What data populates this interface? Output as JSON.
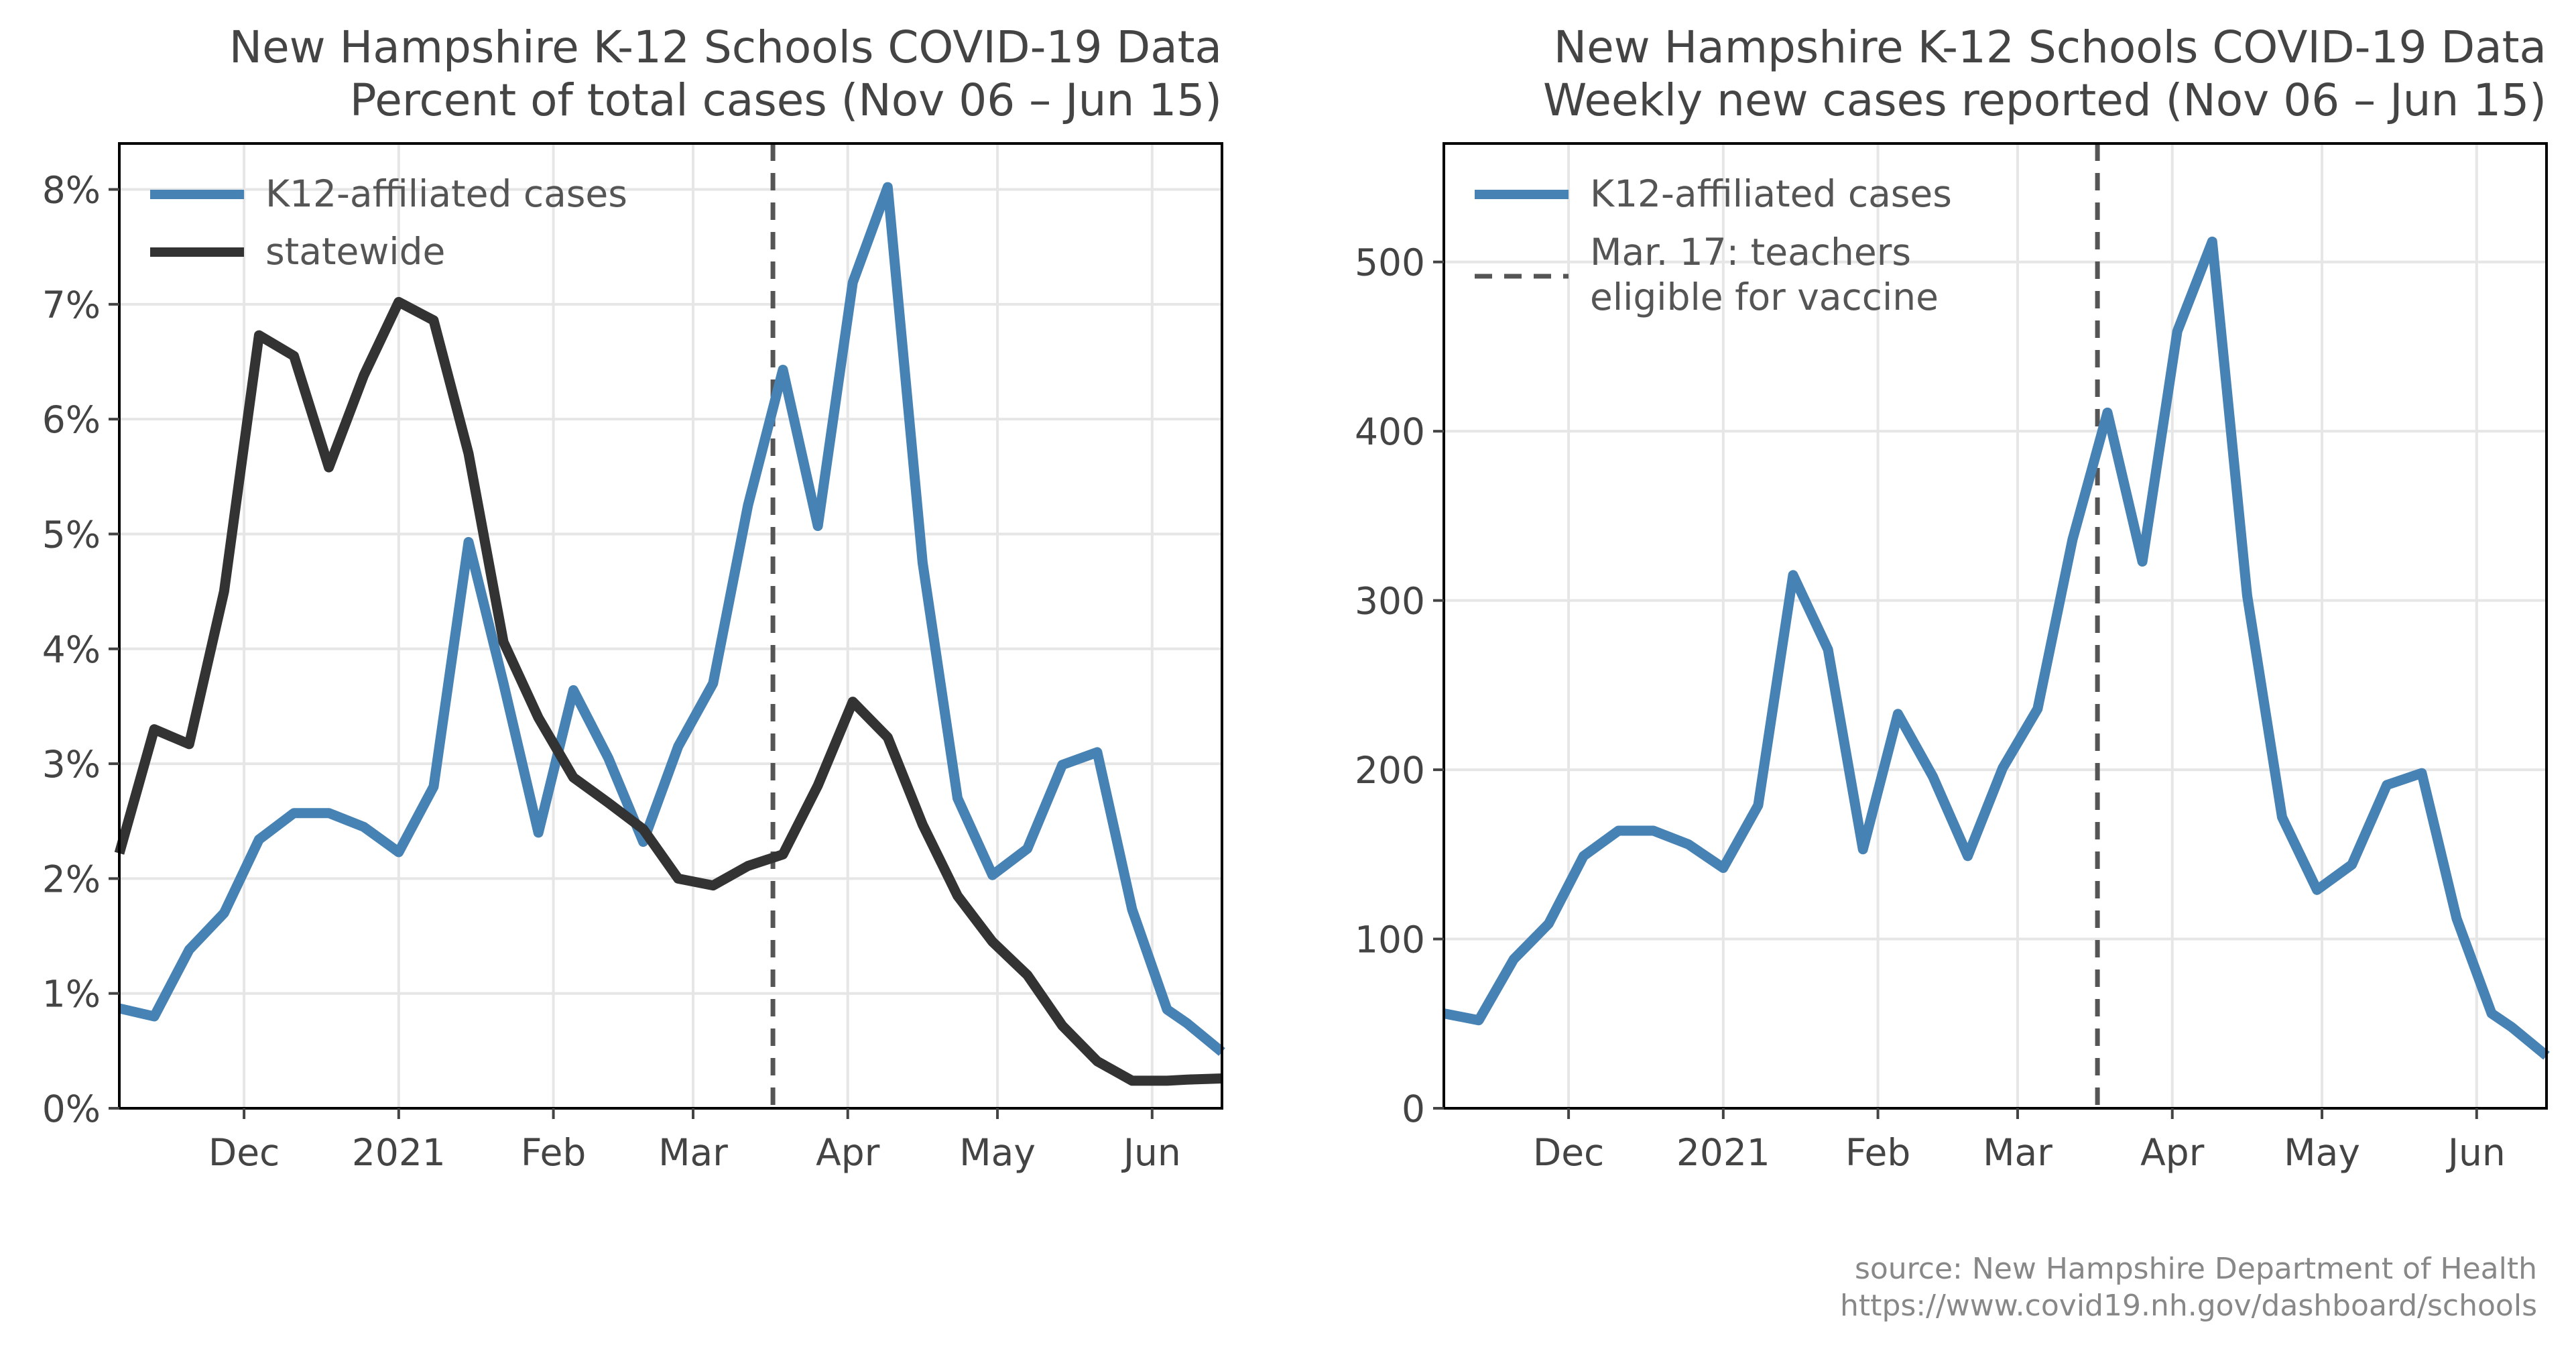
{
  "chart_data": [
    {
      "type": "line",
      "title": "New Hampshire K-12 Schools COVID-19 Data",
      "subtitle": "Percent of total cases (Nov 06 – Jun 15)",
      "x_range": [
        "2020-11-06",
        "2021-06-15"
      ],
      "ylim": [
        0,
        8.4
      ],
      "y_ticks": [
        0,
        1,
        2,
        3,
        4,
        5,
        6,
        7,
        8
      ],
      "y_tick_labels": [
        "0%",
        "1%",
        "2%",
        "3%",
        "4%",
        "5%",
        "6%",
        "7%",
        "8%"
      ],
      "x_ticks": [
        "2020-12-01",
        "2021-01-01",
        "2021-02-01",
        "2021-03-01",
        "2021-04-01",
        "2021-05-01",
        "2021-06-01"
      ],
      "x_tick_labels": [
        "Dec",
        "2021",
        "Feb",
        "Mar",
        "Apr",
        "May",
        "Jun"
      ],
      "grid": true,
      "legend_position": "upper-left",
      "vline": {
        "x": "2021-03-17"
      },
      "series": [
        {
          "name": "K12-affiliated cases",
          "color": "#4682b4",
          "x": [
            "2020-11-06",
            "2020-11-13",
            "2020-11-20",
            "2020-11-27",
            "2020-12-04",
            "2020-12-11",
            "2020-12-18",
            "2020-12-25",
            "2021-01-01",
            "2021-01-08",
            "2021-01-15",
            "2021-01-22",
            "2021-01-29",
            "2021-02-05",
            "2021-02-12",
            "2021-02-19",
            "2021-02-26",
            "2021-03-05",
            "2021-03-12",
            "2021-03-19",
            "2021-03-26",
            "2021-04-02",
            "2021-04-09",
            "2021-04-16",
            "2021-04-23",
            "2021-04-30",
            "2021-05-07",
            "2021-05-14",
            "2021-05-21",
            "2021-05-28",
            "2021-06-04",
            "2021-06-08",
            "2021-06-15"
          ],
          "values": [
            0.87,
            0.8,
            1.38,
            1.7,
            2.34,
            2.57,
            2.57,
            2.45,
            2.23,
            2.8,
            4.93,
            3.7,
            2.4,
            3.64,
            3.05,
            2.32,
            3.15,
            3.7,
            5.25,
            6.43,
            5.07,
            7.19,
            8.02,
            4.75,
            2.7,
            2.03,
            2.26,
            2.99,
            3.1,
            1.73,
            0.86,
            0.74,
            0.49
          ]
        },
        {
          "name": "statewide",
          "color": "#333333",
          "x": [
            "2020-11-06",
            "2020-11-13",
            "2020-11-20",
            "2020-11-27",
            "2020-12-04",
            "2020-12-11",
            "2020-12-18",
            "2020-12-25",
            "2021-01-01",
            "2021-01-08",
            "2021-01-15",
            "2021-01-22",
            "2021-01-29",
            "2021-02-05",
            "2021-02-12",
            "2021-02-19",
            "2021-02-26",
            "2021-03-05",
            "2021-03-12",
            "2021-03-19",
            "2021-03-26",
            "2021-04-02",
            "2021-04-09",
            "2021-04-16",
            "2021-04-23",
            "2021-04-30",
            "2021-05-07",
            "2021-05-14",
            "2021-05-21",
            "2021-05-28",
            "2021-06-04",
            "2021-06-08",
            "2021-06-15"
          ],
          "values": [
            2.22,
            3.3,
            3.17,
            4.5,
            6.73,
            6.55,
            5.58,
            6.38,
            7.02,
            6.86,
            5.7,
            4.06,
            3.4,
            2.88,
            2.66,
            2.43,
            2.0,
            1.94,
            2.11,
            2.21,
            2.81,
            3.54,
            3.23,
            2.47,
            1.85,
            1.45,
            1.16,
            0.72,
            0.41,
            0.24,
            0.24,
            0.25,
            0.26
          ]
        }
      ]
    },
    {
      "type": "line",
      "title": "New Hampshire K-12 Schools COVID-19 Data",
      "subtitle": "Weekly new cases reported (Nov 06 – Jun 15)",
      "x_range": [
        "2020-11-06",
        "2021-06-15"
      ],
      "ylim": [
        0,
        570
      ],
      "y_ticks": [
        0,
        100,
        200,
        300,
        400,
        500
      ],
      "y_tick_labels": [
        "0",
        "100",
        "200",
        "300",
        "400",
        "500"
      ],
      "x_ticks": [
        "2020-12-01",
        "2021-01-01",
        "2021-02-01",
        "2021-03-01",
        "2021-04-01",
        "2021-05-01",
        "2021-06-01"
      ],
      "x_tick_labels": [
        "Dec",
        "2021",
        "Feb",
        "Mar",
        "Apr",
        "May",
        "Jun"
      ],
      "grid": true,
      "legend_position": "upper-left",
      "vline": {
        "x": "2021-03-17",
        "label_line1": "Mar. 17: teachers",
        "label_line2": "eligible for vaccine",
        "color": "#555555"
      },
      "series": [
        {
          "name": "K12-affiliated cases",
          "color": "#4682b4",
          "x": [
            "2020-11-06",
            "2020-11-13",
            "2020-11-20",
            "2020-11-27",
            "2020-12-04",
            "2020-12-11",
            "2020-12-18",
            "2020-12-25",
            "2021-01-01",
            "2021-01-08",
            "2021-01-15",
            "2021-01-22",
            "2021-01-29",
            "2021-02-05",
            "2021-02-12",
            "2021-02-19",
            "2021-02-26",
            "2021-03-05",
            "2021-03-12",
            "2021-03-19",
            "2021-03-26",
            "2021-04-02",
            "2021-04-09",
            "2021-04-16",
            "2021-04-23",
            "2021-04-30",
            "2021-05-07",
            "2021-05-14",
            "2021-05-21",
            "2021-05-28",
            "2021-06-04",
            "2021-06-08",
            "2021-06-15"
          ],
          "values": [
            56,
            52,
            88,
            109,
            149,
            164,
            164,
            156,
            142,
            179,
            315,
            271,
            153,
            233,
            196,
            149,
            201,
            236,
            336,
            411,
            323,
            459,
            512,
            303,
            172,
            129,
            144,
            191,
            198,
            112,
            56,
            48,
            31
          ]
        }
      ]
    }
  ],
  "source": {
    "line1": "source: New Hampshire Department of Health",
    "line2": "https://www.covid19.nh.gov/dashboard/schools"
  }
}
